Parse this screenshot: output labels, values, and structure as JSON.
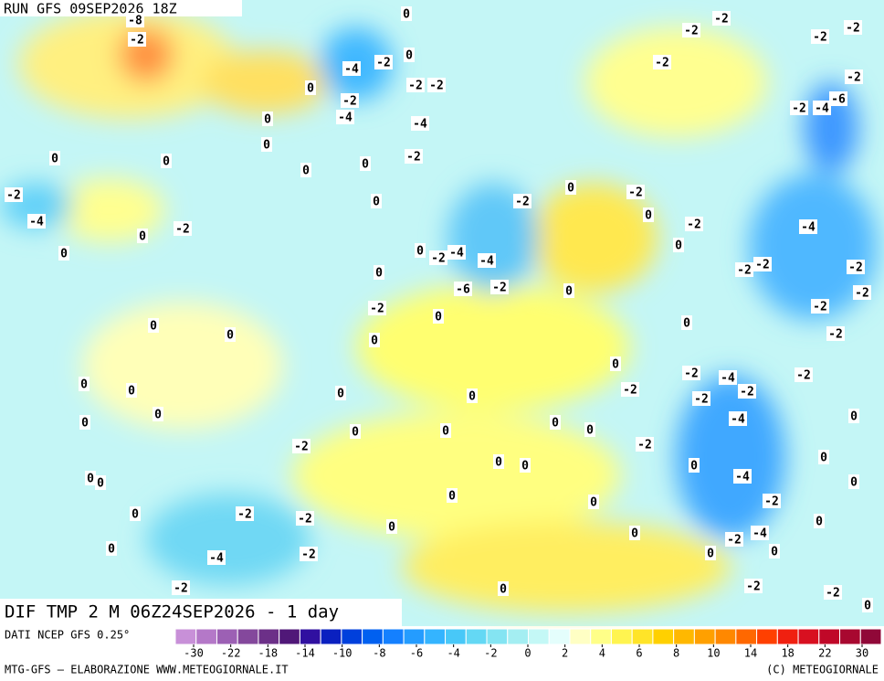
{
  "header": {
    "run": "RUN GFS 09SEP2026 18Z"
  },
  "map": {
    "title": "DIF TMP 2 M 06Z24SEP2026 - 1 day",
    "contour_labels": [
      0,
      -8,
      -2,
      0,
      -4,
      -2,
      0,
      -2,
      -4,
      -2,
      -2,
      -4,
      0,
      0,
      0,
      0,
      0,
      0,
      -2,
      -2,
      -4,
      0,
      -2,
      0,
      0,
      0,
      -2,
      -4,
      -4,
      -2,
      0,
      -2,
      0,
      -2,
      0,
      0,
      -6,
      -2,
      0,
      -2,
      0,
      0,
      0,
      0,
      0,
      0,
      0,
      0,
      0,
      0,
      0,
      0,
      0,
      0,
      0,
      0,
      -2,
      -2,
      -4,
      -2,
      -2,
      -2,
      -4,
      -2,
      -2,
      0,
      0,
      0,
      0,
      0,
      -4,
      0,
      -2,
      -2,
      0,
      0,
      0,
      -2,
      0,
      0,
      -4,
      -2,
      0,
      0,
      -2,
      -4,
      0,
      -2,
      0,
      -2,
      -2,
      0,
      -2,
      -2,
      -2,
      -2,
      -2,
      -2,
      -2,
      -4,
      -6,
      -4,
      -2,
      -2,
      -2,
      -2,
      -2,
      -2,
      0,
      0,
      0
    ]
  },
  "legend": {
    "source": "DATI NCEP GFS 0.25°",
    "colors": [
      "#c890d8",
      "#b478c8",
      "#9c60b4",
      "#84489c",
      "#6c3088",
      "#501878",
      "#3010a0",
      "#0a20c0",
      "#0040dc",
      "#0060f0",
      "#1480ff",
      "#249cff",
      "#34b4ff",
      "#48c8f8",
      "#64d8f4",
      "#84e4f2",
      "#a4eef2",
      "#c4f8f6",
      "#e4fefc",
      "#ffffc4",
      "#ffff88",
      "#fff450",
      "#ffe428",
      "#ffd000",
      "#ffb800",
      "#ffa000",
      "#ff8800",
      "#ff6800",
      "#ff4000",
      "#f02010",
      "#d81020",
      "#c00828",
      "#a80830",
      "#900838"
    ],
    "ticks": [
      -30,
      -22,
      -18,
      -14,
      -10,
      -8,
      -6,
      -4,
      -2,
      0,
      2,
      4,
      6,
      8,
      10,
      14,
      18,
      22,
      30
    ]
  },
  "footer": {
    "left": "MTG-GFS — ELABORAZIONE WWW.METEOGIORNALE.IT",
    "right": "(C) METEOGIORNALE"
  }
}
